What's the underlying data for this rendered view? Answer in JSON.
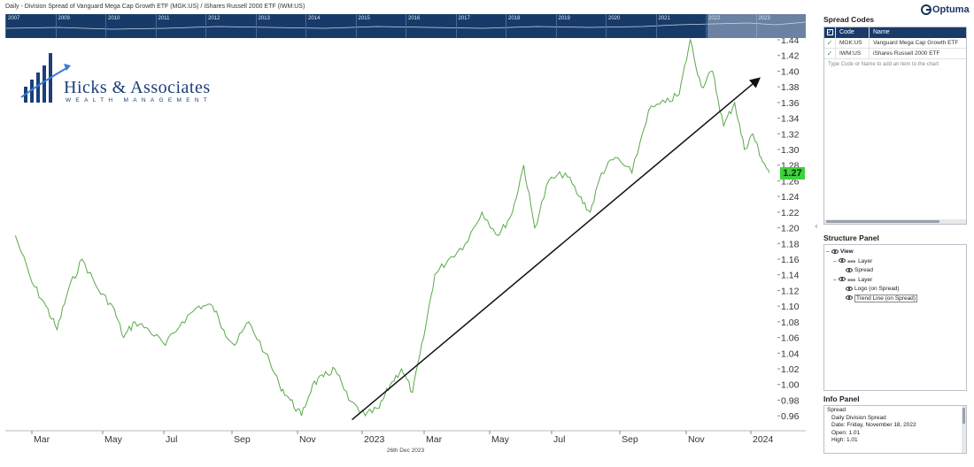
{
  "window": {
    "title": "Daily - Division Spread of Vanguard Mega Cap Growth ETF (MGK:US) / iShares Russell 2000 ETF (IWM:US)"
  },
  "brand": {
    "name": "Optuma"
  },
  "navigator": {
    "years": [
      "2007",
      "2009",
      "2010",
      "2011",
      "2012",
      "2013",
      "2014",
      "2015",
      "2016",
      "2017",
      "2018",
      "2019",
      "2020",
      "2021",
      "2022",
      "2023"
    ]
  },
  "logo": {
    "name": "Hicks & Associates",
    "tagline": "WEALTH MANAGEMENT"
  },
  "chart": {
    "last_value_badge": "1.27",
    "footer_date": "26th Dec 2023",
    "colors": {
      "line": "#5aa84a",
      "badge": "#3ed13e",
      "trend": "#111111",
      "navigator": "#173a68"
    }
  },
  "chart_data": {
    "type": "line",
    "series": [
      {
        "name": "Spread",
        "x": [
          "2022-02",
          "2022-02",
          "2022-03",
          "2022-03",
          "2022-03",
          "2022-04",
          "2022-04",
          "2022-05",
          "2022-05",
          "2022-05",
          "2022-06",
          "2022-06",
          "2022-07",
          "2022-07",
          "2022-08",
          "2022-08",
          "2022-08",
          "2022-09",
          "2022-09",
          "2022-10",
          "2022-10",
          "2022-10",
          "2022-11",
          "2022-11",
          "2022-11",
          "2022-12",
          "2022-12",
          "2023-01",
          "2023-01",
          "2023-01",
          "2023-02",
          "2023-02",
          "2023-02",
          "2023-03",
          "2023-03",
          "2023-04",
          "2023-04",
          "2023-05",
          "2023-05",
          "2023-05",
          "2023-06",
          "2023-06",
          "2023-07",
          "2023-07",
          "2023-07",
          "2023-08",
          "2023-08",
          "2023-09",
          "2023-09",
          "2023-10",
          "2023-10",
          "2023-10",
          "2023-11",
          "2023-11",
          "2023-11",
          "2023-12",
          "2023-12",
          "2023-12",
          "2023-12"
        ],
        "values": [
          1.19,
          1.13,
          1.1,
          1.07,
          1.12,
          1.16,
          1.12,
          1.1,
          1.06,
          1.08,
          1.07,
          1.05,
          1.08,
          1.1,
          1.1,
          1.07,
          1.05,
          1.08,
          1.04,
          1.0,
          0.98,
          0.96,
          1.0,
          1.01,
          1.02,
          0.98,
          0.96,
          0.97,
          1.0,
          1.02,
          0.99,
          1.06,
          1.14,
          1.16,
          1.18,
          1.22,
          1.19,
          1.22,
          1.28,
          1.2,
          1.26,
          1.27,
          1.24,
          1.22,
          1.27,
          1.29,
          1.27,
          1.35,
          1.36,
          1.37,
          1.44,
          1.38,
          1.4,
          1.33,
          1.36,
          1.3,
          1.32,
          1.29,
          1.27
        ]
      }
    ],
    "trend_line": {
      "x": [
        "2022-12",
        "2023-12"
      ],
      "values": [
        0.955,
        1.39
      ]
    },
    "xticks": [
      "Mar",
      "May",
      "Jul",
      "Sep",
      "Nov",
      "2023",
      "Mar",
      "May",
      "Jul",
      "Sep",
      "Nov",
      "2024"
    ],
    "yticks": [
      "0.96",
      "0.98",
      "1.00",
      "1.02",
      "1.04",
      "1.06",
      "1.08",
      "1.10",
      "1.12",
      "1.14",
      "1.16",
      "1.18",
      "1.20",
      "1.22",
      "1.24",
      "1.26",
      "1.28",
      "1.30",
      "1.32",
      "1.34",
      "1.36",
      "1.38",
      "1.40",
      "1.42",
      "1.44"
    ],
    "ylim": [
      0.95,
      1.44
    ],
    "grid": false,
    "xlabel": "",
    "ylabel": ""
  },
  "spread_codes": {
    "header": "Spread Codes",
    "columns": {
      "code": "Code",
      "name": "Name"
    },
    "rows": [
      {
        "code": "MGK:US",
        "name": "Vanguard Mega Cap Growth ETF"
      },
      {
        "code": "IWM:US",
        "name": "iShares Russell 2000 ETF"
      }
    ],
    "add_hint": "Type Code or Name to add an item to the chart"
  },
  "structure_panel": {
    "header": "Structure Panel",
    "items": {
      "view": "View",
      "layer1": "Layer",
      "spread": "Spread",
      "layer2": "Layer",
      "logo": "Logo (on Spread)",
      "trend": "Trend Line (on Spread)"
    }
  },
  "info_panel": {
    "header": "Info Panel",
    "lines": [
      "Spread",
      "Daily Division Spread",
      "Date: Friday, November 18, 2022",
      "Open: 1.01",
      "High: 1.01"
    ]
  }
}
